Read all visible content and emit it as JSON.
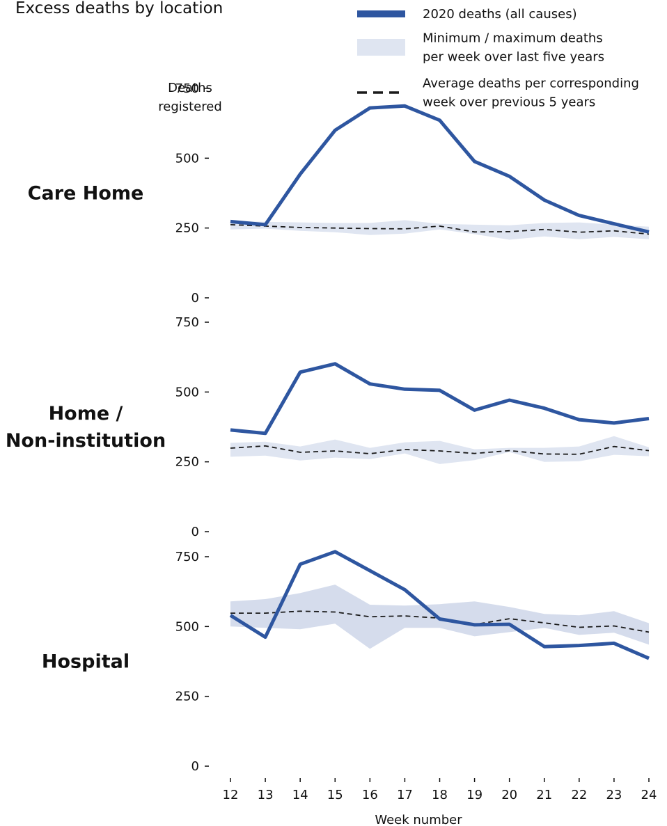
{
  "chart_data": {
    "type": "line",
    "title": "Excess deaths by location",
    "ylabel": [
      "Deaths",
      "registered"
    ],
    "xlabel": "Week number",
    "x": [
      12,
      13,
      14,
      15,
      16,
      17,
      18,
      19,
      20,
      21,
      22,
      23,
      24
    ],
    "yticks": [
      0,
      250,
      500,
      750
    ],
    "ylim": [
      0,
      750
    ],
    "grid": false,
    "legend_position": "top-right",
    "legend": [
      {
        "kind": "line",
        "lines": [
          "2020 deaths (all causes)"
        ]
      },
      {
        "kind": "band",
        "lines": [
          "Minimum / maximum deaths",
          "per week over last five years"
        ]
      },
      {
        "kind": "dashed",
        "lines": [
          "Average deaths per corresponding",
          "week over previous 5 years"
        ]
      }
    ],
    "colors": {
      "line_2020": "#2e56a0",
      "band": "#dfe5f1",
      "band_hospital": "#d5dcec",
      "average": "#1a1a1a"
    },
    "panels": [
      {
        "label": [
          "Care Home"
        ],
        "deaths_2020": [
          273,
          262,
          443,
          600,
          680,
          687,
          636,
          488,
          435,
          350,
          295,
          265,
          236
        ],
        "min": [
          245,
          248,
          240,
          235,
          225,
          230,
          245,
          228,
          208,
          220,
          210,
          218,
          210
        ],
        "max": [
          275,
          272,
          270,
          268,
          268,
          278,
          265,
          262,
          260,
          268,
          270,
          262,
          255
        ],
        "average": [
          262,
          257,
          252,
          250,
          248,
          247,
          257,
          236,
          237,
          245,
          235,
          240,
          228
        ]
      },
      {
        "label": [
          "Home /",
          "Non-institution"
        ],
        "deaths_2020": [
          364,
          352,
          571,
          601,
          529,
          510,
          506,
          435,
          471,
          442,
          401,
          389,
          405
        ],
        "min": [
          268,
          272,
          255,
          265,
          260,
          280,
          242,
          256,
          285,
          250,
          252,
          275,
          270
        ],
        "max": [
          318,
          322,
          305,
          330,
          300,
          320,
          325,
          295,
          300,
          300,
          305,
          342,
          302
        ],
        "average": [
          299,
          307,
          284,
          289,
          279,
          294,
          289,
          280,
          290,
          278,
          277,
          305,
          290
        ]
      },
      {
        "label": [
          "Hospital"
        ],
        "deaths_2020": [
          540,
          462,
          723,
          768,
          700,
          632,
          527,
          506,
          508,
          428,
          432,
          440,
          386
        ],
        "min": [
          500,
          495,
          490,
          510,
          420,
          495,
          495,
          465,
          480,
          495,
          470,
          478,
          435
        ],
        "max": [
          590,
          598,
          620,
          650,
          578,
          575,
          580,
          590,
          570,
          545,
          540,
          555,
          512
        ],
        "average": [
          548,
          548,
          555,
          552,
          535,
          538,
          530,
          507,
          528,
          513,
          497,
          502,
          480
        ]
      }
    ]
  }
}
